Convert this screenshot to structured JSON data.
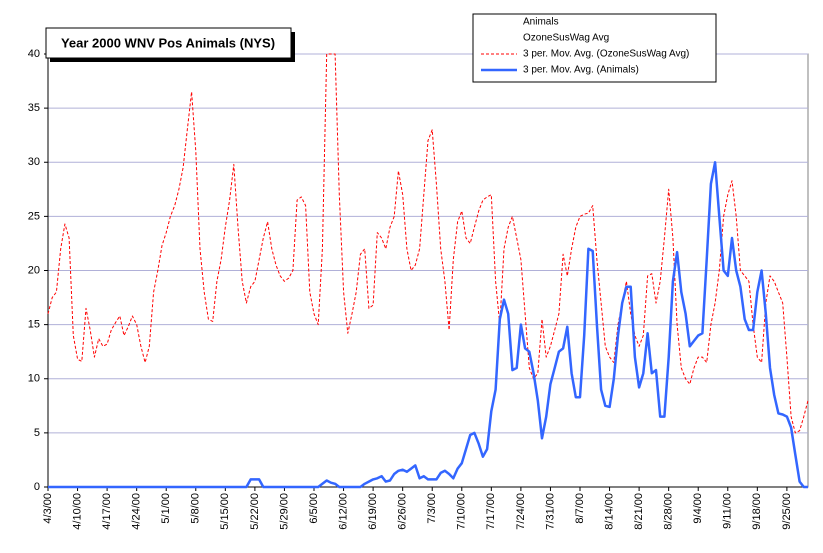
{
  "chart_data": {
    "type": "line",
    "title": "Year 2000 WNV Pos Animals (NYS)",
    "hidden_series_names": [
      "Animals",
      "OzoneSusWag Avg"
    ],
    "categories": [
      "4/3/00",
      null,
      null,
      null,
      null,
      null,
      null,
      "4/10/00",
      null,
      null,
      null,
      null,
      null,
      null,
      "4/17/00",
      null,
      null,
      null,
      null,
      null,
      null,
      "4/24/00",
      null,
      null,
      null,
      null,
      null,
      null,
      "5/1/00",
      null,
      null,
      null,
      null,
      null,
      null,
      "5/8/00",
      null,
      null,
      null,
      null,
      null,
      null,
      "5/15/00",
      null,
      null,
      null,
      null,
      null,
      null,
      "5/22/00",
      null,
      null,
      null,
      null,
      null,
      null,
      "5/29/00",
      null,
      null,
      null,
      null,
      null,
      null,
      "6/5/00",
      null,
      null,
      null,
      null,
      null,
      null,
      "6/12/00",
      null,
      null,
      null,
      null,
      null,
      null,
      "6/19/00",
      null,
      null,
      null,
      null,
      null,
      null,
      "6/26/00",
      null,
      null,
      null,
      null,
      null,
      null,
      "7/3/00",
      null,
      null,
      null,
      null,
      null,
      null,
      "7/10/00",
      null,
      null,
      null,
      null,
      null,
      null,
      "7/17/00",
      null,
      null,
      null,
      null,
      null,
      null,
      "7/24/00",
      null,
      null,
      null,
      null,
      null,
      null,
      "7/31/00",
      null,
      null,
      null,
      null,
      null,
      null,
      "8/7/00",
      null,
      null,
      null,
      null,
      null,
      null,
      "8/14/00",
      null,
      null,
      null,
      null,
      null,
      null,
      "8/21/00",
      null,
      null,
      null,
      null,
      null,
      null,
      "8/28/00",
      null,
      null,
      null,
      null,
      null,
      null,
      "9/4/00",
      null,
      null,
      null,
      null,
      null,
      null,
      "9/11/00",
      null,
      null,
      null,
      null,
      null,
      null,
      "9/18/00",
      null,
      null,
      null,
      null,
      null,
      null,
      "9/25/00",
      null,
      null,
      null,
      null,
      null
    ],
    "series": [
      {
        "name": "3 per. Mov. Avg. (OzoneSusWag Avg)",
        "color": "#ff0000",
        "dashed": true,
        "values": [
          16,
          17.5,
          18,
          22,
          24.3,
          23,
          14,
          11.8,
          11.6,
          16.5,
          14.5,
          12,
          13.7,
          13,
          13.2,
          14.5,
          15.2,
          15.8,
          14,
          14.8,
          15.8,
          15,
          13,
          11.5,
          13,
          18,
          20,
          22.3,
          23.5,
          25,
          26,
          27.5,
          29.5,
          33,
          36.5,
          31,
          22,
          18,
          15.5,
          15.3,
          19,
          21,
          24,
          26.5,
          29.8,
          24,
          19,
          17,
          18.5,
          19,
          21,
          23,
          24.5,
          22,
          20.5,
          19.5,
          19,
          19.3,
          20,
          26.5,
          26.8,
          26,
          18,
          16,
          15,
          22,
          40,
          40,
          40,
          27,
          18,
          14.2,
          16,
          18,
          21.5,
          22,
          16.5,
          16.8,
          23.5,
          23,
          22,
          24,
          25,
          29.2,
          27,
          22,
          20,
          20.5,
          22,
          27,
          32,
          33,
          28,
          22,
          19,
          14.5,
          21,
          24.5,
          25.5,
          23,
          22.5,
          24,
          25.5,
          26.5,
          26.8,
          27,
          19,
          15,
          22,
          24,
          25,
          23,
          21,
          16,
          11,
          10,
          10.5,
          15.5,
          12,
          13,
          14.5,
          16,
          21.5,
          19.5,
          22,
          24,
          25,
          25.2,
          25.3,
          26,
          21,
          17,
          13,
          12,
          11.5,
          15,
          17,
          19,
          16,
          14,
          13,
          14,
          19.5,
          19.7,
          17,
          19,
          23,
          27.5,
          23,
          15,
          11,
          10,
          9.5,
          11,
          12,
          12,
          11.5,
          15,
          17,
          20,
          25,
          27,
          28.3,
          25,
          20,
          19.5,
          19,
          15,
          12,
          11.5,
          17,
          19.5,
          19,
          18,
          17,
          12,
          6.5,
          5,
          5.2,
          6.5,
          8
        ]
      },
      {
        "name": "3 per. Mov. Avg. (Animals)",
        "color": "#3366ff",
        "dashed": false,
        "values": [
          0,
          0,
          0,
          0,
          0,
          0,
          0,
          0,
          0,
          0,
          0,
          0,
          0,
          0,
          0,
          0,
          0,
          0,
          0,
          0,
          0,
          0,
          0,
          0,
          0,
          0,
          0,
          0,
          0,
          0,
          0,
          0,
          0,
          0,
          0,
          0,
          0,
          0,
          0,
          0,
          0,
          0,
          0,
          0,
          0,
          0,
          0,
          0,
          0.7,
          0.7,
          0.7,
          0,
          0,
          0,
          0,
          0,
          0,
          0,
          0,
          0,
          0,
          0,
          0,
          0,
          0,
          0.3,
          0.6,
          0.4,
          0.3,
          0,
          0,
          0,
          0,
          0,
          0,
          0.3,
          0.5,
          0.7,
          0.8,
          1.0,
          0.5,
          0.6,
          1.2,
          1.5,
          1.6,
          1.4,
          1.7,
          2.0,
          0.8,
          1.0,
          0.7,
          0.7,
          0.7,
          1.3,
          1.5,
          1.2,
          0.8,
          1.7,
          2.2,
          3.5,
          4.8,
          5.0,
          4.0,
          2.8,
          3.5,
          7,
          9,
          15.5,
          17.3,
          16,
          10.8,
          11,
          15,
          12.8,
          12.5,
          10.5,
          8,
          4.5,
          6.5,
          9.5,
          11,
          12.5,
          12.8,
          14.8,
          10.5,
          8.3,
          8.3,
          14,
          22,
          21.8,
          15,
          9,
          7.5,
          7.4,
          10,
          14,
          17,
          18.5,
          18.5,
          12,
          9.2,
          10.5,
          14.2,
          10.5,
          10.8,
          6.5,
          6.5,
          12,
          19,
          21.7,
          18,
          16,
          13,
          13.5,
          14,
          14.2,
          21,
          28,
          30,
          25,
          20,
          19.5,
          23,
          20,
          18.5,
          15.5,
          14.5,
          14.5,
          18,
          20,
          16,
          11,
          8.5,
          6.8,
          6.7,
          6.5,
          5.5,
          3,
          0.5,
          0,
          0
        ]
      }
    ],
    "ylim": [
      0,
      40
    ],
    "yticks": [
      0,
      5,
      10,
      15,
      20,
      25,
      30,
      35,
      40
    ],
    "grid": true
  }
}
